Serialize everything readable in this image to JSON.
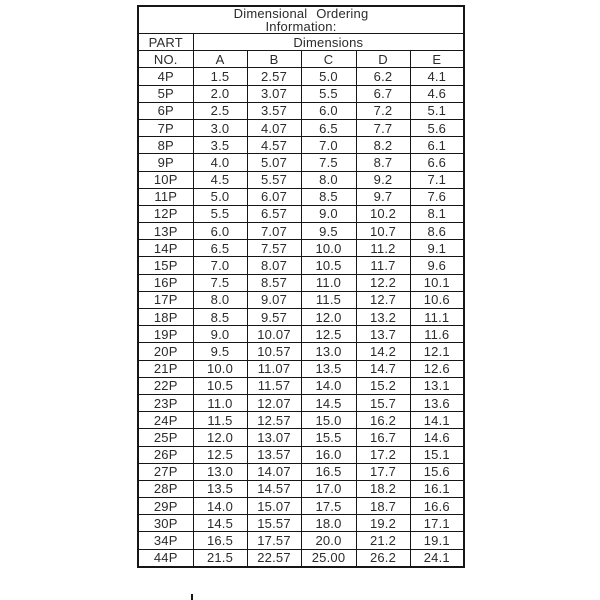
{
  "colors": {
    "background": "#ffffff",
    "ink": "#2b2b2b",
    "border": "#161616"
  },
  "table": {
    "title_line1": "Dimensional Ordering",
    "title_line2": "Information:",
    "part_header": "PART",
    "no_header": "NO.",
    "dimensions_header": "Dimensions",
    "columns": [
      "A",
      "B",
      "C",
      "D",
      "E"
    ],
    "rows": [
      {
        "part": "4P",
        "values": [
          "1.5",
          "2.57",
          "5.0",
          "6.2",
          "4.1"
        ]
      },
      {
        "part": "5P",
        "values": [
          "2.0",
          "3.07",
          "5.5",
          "6.7",
          "4.6"
        ]
      },
      {
        "part": "6P",
        "values": [
          "2.5",
          "3.57",
          "6.0",
          "7.2",
          "5.1"
        ]
      },
      {
        "part": "7P",
        "values": [
          "3.0",
          "4.07",
          "6.5",
          "7.7",
          "5.6"
        ]
      },
      {
        "part": "8P",
        "values": [
          "3.5",
          "4.57",
          "7.0",
          "8.2",
          "6.1"
        ]
      },
      {
        "part": "9P",
        "values": [
          "4.0",
          "5.07",
          "7.5",
          "8.7",
          "6.6"
        ]
      },
      {
        "part": "10P",
        "values": [
          "4.5",
          "5.57",
          "8.0",
          "9.2",
          "7.1"
        ]
      },
      {
        "part": "11P",
        "values": [
          "5.0",
          "6.07",
          "8.5",
          "9.7",
          "7.6"
        ]
      },
      {
        "part": "12P",
        "values": [
          "5.5",
          "6.57",
          "9.0",
          "10.2",
          "8.1"
        ]
      },
      {
        "part": "13P",
        "values": [
          "6.0",
          "7.07",
          "9.5",
          "10.7",
          "8.6"
        ]
      },
      {
        "part": "14P",
        "values": [
          "6.5",
          "7.57",
          "10.0",
          "11.2",
          "9.1"
        ]
      },
      {
        "part": "15P",
        "values": [
          "7.0",
          "8.07",
          "10.5",
          "11.7",
          "9.6"
        ]
      },
      {
        "part": "16P",
        "values": [
          "7.5",
          "8.57",
          "11.0",
          "12.2",
          "10.1"
        ]
      },
      {
        "part": "17P",
        "values": [
          "8.0",
          "9.07",
          "11.5",
          "12.7",
          "10.6"
        ]
      },
      {
        "part": "18P",
        "values": [
          "8.5",
          "9.57",
          "12.0",
          "13.2",
          "11.1"
        ]
      },
      {
        "part": "19P",
        "values": [
          "9.0",
          "10.07",
          "12.5",
          "13.7",
          "11.6"
        ]
      },
      {
        "part": "20P",
        "values": [
          "9.5",
          "10.57",
          "13.0",
          "14.2",
          "12.1"
        ]
      },
      {
        "part": "21P",
        "values": [
          "10.0",
          "11.07",
          "13.5",
          "14.7",
          "12.6"
        ]
      },
      {
        "part": "22P",
        "values": [
          "10.5",
          "11.57",
          "14.0",
          "15.2",
          "13.1"
        ]
      },
      {
        "part": "23P",
        "values": [
          "11.0",
          "12.07",
          "14.5",
          "15.7",
          "13.6"
        ]
      },
      {
        "part": "24P",
        "values": [
          "11.5",
          "12.57",
          "15.0",
          "16.2",
          "14.1"
        ]
      },
      {
        "part": "25P",
        "values": [
          "12.0",
          "13.07",
          "15.5",
          "16.7",
          "14.6"
        ]
      },
      {
        "part": "26P",
        "values": [
          "12.5",
          "13.57",
          "16.0",
          "17.2",
          "15.1"
        ]
      },
      {
        "part": "27P",
        "values": [
          "13.0",
          "14.07",
          "16.5",
          "17.7",
          "15.6"
        ]
      },
      {
        "part": "28P",
        "values": [
          "13.5",
          "14.57",
          "17.0",
          "18.2",
          "16.1"
        ]
      },
      {
        "part": "29P",
        "values": [
          "14.0",
          "15.07",
          "17.5",
          "18.7",
          "16.6"
        ]
      },
      {
        "part": "30P",
        "values": [
          "14.5",
          "15.57",
          "18.0",
          "19.2",
          "17.1"
        ]
      },
      {
        "part": "34P",
        "values": [
          "16.5",
          "17.57",
          "20.0",
          "21.2",
          "19.1"
        ]
      },
      {
        "part": "44P",
        "values": [
          "21.5",
          "22.57",
          "25.00",
          "26.2",
          "24.1"
        ]
      }
    ]
  }
}
